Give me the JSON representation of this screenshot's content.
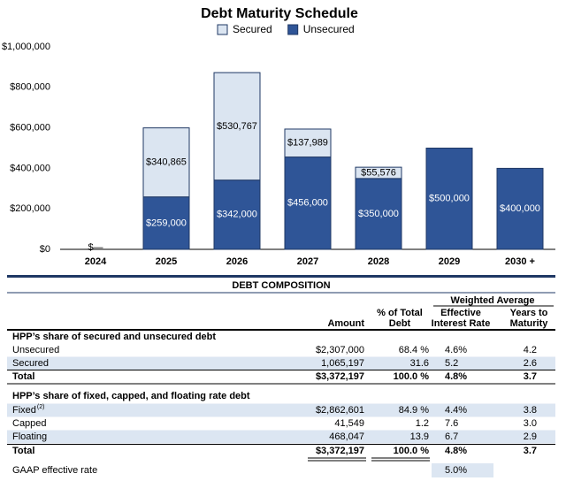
{
  "chart_data": {
    "type": "bar",
    "stacked": true,
    "title": "Debt Maturity Schedule",
    "categories": [
      "2024",
      "2025",
      "2026",
      "2027",
      "2028",
      "2029",
      "2030 +"
    ],
    "series": [
      {
        "name": "Secured",
        "color": "#dbe5f1",
        "values": [
          0,
          340865,
          530767,
          137989,
          55576,
          0,
          0
        ],
        "value_labels": [
          null,
          "$340,865",
          "$530,767",
          "$137,989",
          "$55,576",
          null,
          null
        ]
      },
      {
        "name": "Unsecured",
        "color": "#2f5597",
        "values": [
          0,
          259000,
          342000,
          456000,
          350000,
          500000,
          400000
        ],
        "value_labels": [
          "$—",
          "$259,000",
          "$342,000",
          "$456,000",
          "$350,000",
          "$500,000",
          "$400,000"
        ]
      }
    ],
    "ylim": [
      0,
      1000000
    ],
    "yticks": [
      {
        "value": 0,
        "label": "$0"
      },
      {
        "value": 200000,
        "label": "$200,000"
      },
      {
        "value": 400000,
        "label": "$400,000"
      },
      {
        "value": 600000,
        "label": "$600,000"
      },
      {
        "value": 800000,
        "label": "$800,000"
      },
      {
        "value": 1000000,
        "label": "$1,000,000"
      }
    ],
    "grid": false,
    "legend": "top"
  },
  "table": {
    "title": "DEBT COMPOSITION",
    "group_header": "Weighted Average",
    "columns": [
      "Amount",
      [
        "% of Total",
        "Debt"
      ],
      [
        "Effective",
        "Interest Rate"
      ],
      [
        "Years to",
        "Maturity"
      ]
    ],
    "sections": [
      {
        "title": "HPP’s share of secured and unsecured debt",
        "rows": [
          {
            "label": "Unsecured",
            "amount": "$2,307,000",
            "pct": "68.4 %",
            "rate": "4.6%",
            "years": "4.2"
          },
          {
            "label": "Secured",
            "amount": "1,065,197",
            "pct": "31.6",
            "rate": "5.2",
            "years": "2.6"
          }
        ],
        "total": {
          "label": "Total",
          "amount": "$3,372,197",
          "pct": "100.0 %",
          "rate": "4.8%",
          "years": "3.7"
        }
      },
      {
        "title": "HPP’s share of fixed, capped, and floating rate debt",
        "rows": [
          {
            "label": "Fixed",
            "note": "(2)",
            "amount": "$2,862,601",
            "pct": "84.9 %",
            "rate": "4.4%",
            "years": "3.8"
          },
          {
            "label": "Capped",
            "amount": "41,549",
            "pct": "1.2",
            "rate": "7.6",
            "years": "3.0"
          },
          {
            "label": "Floating",
            "amount": "468,047",
            "pct": "13.9",
            "rate": "6.7",
            "years": "2.9"
          }
        ],
        "total": {
          "label": "Total",
          "amount": "$3,372,197",
          "pct": "100.0 %",
          "rate": "4.8%",
          "years": "3.7"
        }
      }
    ],
    "footer_row": {
      "label": "GAAP effective rate",
      "rate": "5.0%"
    }
  }
}
